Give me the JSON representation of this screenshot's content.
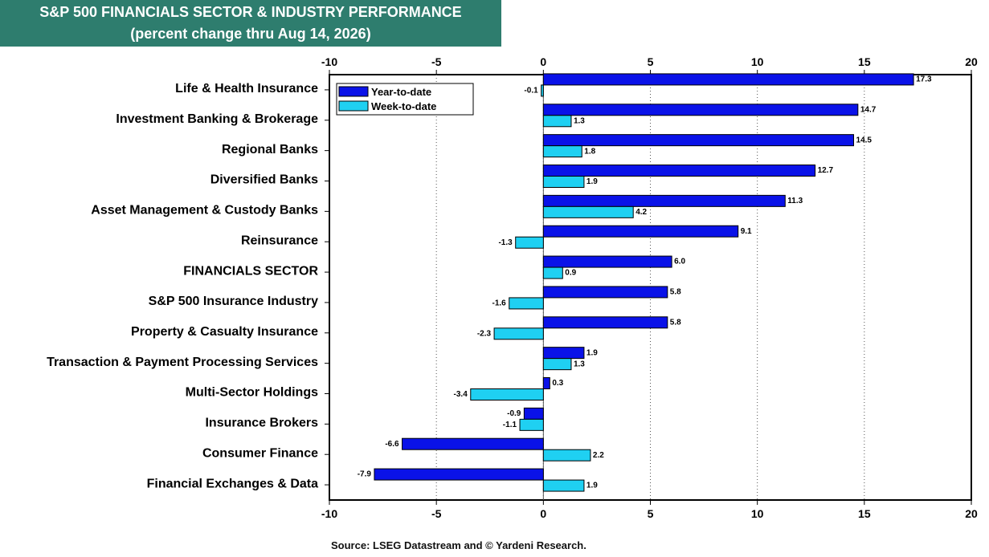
{
  "title": "S&P 500 FINANCIALS SECTOR & INDUSTRY PERFORMANCE",
  "subtitle": "(percent change thru Aug 14, 2026)",
  "source": "Source: LSEG Datastream and © Yardeni Research.",
  "colors": {
    "ytd": "#0a12e8",
    "wtd": "#1fd0f2",
    "title_bg": "#2e7d6e"
  },
  "chart_data": {
    "type": "bar",
    "orientation": "horizontal",
    "categories": [
      "Life & Health Insurance",
      "Investment Banking & Brokerage",
      "Regional Banks",
      "Diversified Banks",
      "Asset Management & Custody Banks",
      "Reinsurance",
      "FINANCIALS SECTOR",
      "S&P 500 Insurance Industry",
      "Property & Casualty Insurance",
      "Transaction & Payment Processing Services",
      "Multi-Sector Holdings",
      "Insurance Brokers",
      "Consumer Finance",
      "Financial Exchanges & Data"
    ],
    "series": [
      {
        "name": "Year-to-date",
        "values": [
          17.3,
          14.7,
          14.5,
          12.7,
          11.3,
          9.1,
          6.0,
          5.8,
          5.8,
          1.9,
          0.3,
          -0.9,
          -6.6,
          -7.9
        ]
      },
      {
        "name": "Week-to-date",
        "values": [
          -0.1,
          1.3,
          1.8,
          1.9,
          4.2,
          -1.3,
          0.9,
          -1.6,
          -2.3,
          1.3,
          -3.4,
          -1.1,
          2.2,
          1.9
        ]
      }
    ],
    "xlim": [
      -10,
      20
    ],
    "xticks": [
      -10,
      -5,
      0,
      5,
      10,
      15,
      20
    ],
    "grid": "vertical dotted",
    "legend_position": "top-left"
  }
}
